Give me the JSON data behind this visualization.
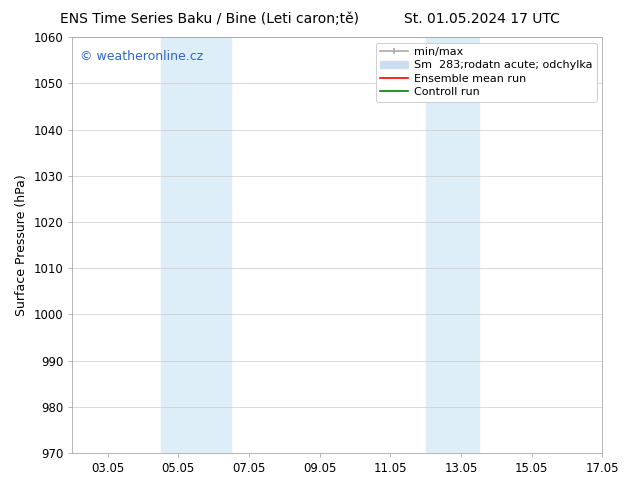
{
  "title_left": "ENS Time Series Baku / Bine (Leti caron;tě)",
  "title_right": "St. 01.05.2024 17 UTC",
  "ylabel": "Surface Pressure (hPa)",
  "ylim": [
    970,
    1060
  ],
  "yticks": [
    970,
    980,
    990,
    1000,
    1010,
    1020,
    1030,
    1040,
    1050,
    1060
  ],
  "xlim_start_days": 0.0,
  "xlim_end_days": 14.0,
  "xtick_labels": [
    "03.05",
    "05.05",
    "07.05",
    "09.05",
    "11.05",
    "13.05",
    "15.05",
    "17.05"
  ],
  "xtick_positions": [
    1.0,
    3.0,
    5.0,
    7.0,
    9.0,
    11.0,
    13.0,
    15.0
  ],
  "shaded_regions": [
    {
      "xstart": 2.5,
      "xend": 4.5
    },
    {
      "xstart": 10.0,
      "xend": 11.5
    }
  ],
  "shaded_color": "#ddeef8",
  "watermark_text": "© weatheronline.cz",
  "watermark_color": "#3366cc",
  "legend_entries": [
    {
      "label": "min/max",
      "color": "#aaaaaa",
      "lw": 1.2,
      "type": "minmax"
    },
    {
      "label": "Sm  283;rodatn acute; odchylka",
      "color": "#ccddf0",
      "lw": 8,
      "type": "fill"
    },
    {
      "label": "Ensemble mean run",
      "color": "red",
      "lw": 1.2,
      "type": "line"
    },
    {
      "label": "Controll run",
      "color": "green",
      "lw": 1.2,
      "type": "line"
    }
  ],
  "background_color": "#ffffff",
  "grid_color": "#cccccc",
  "font_size_title": 10,
  "font_size_axis": 9,
  "font_size_tick": 8.5,
  "font_size_legend": 8,
  "font_size_watermark": 9
}
